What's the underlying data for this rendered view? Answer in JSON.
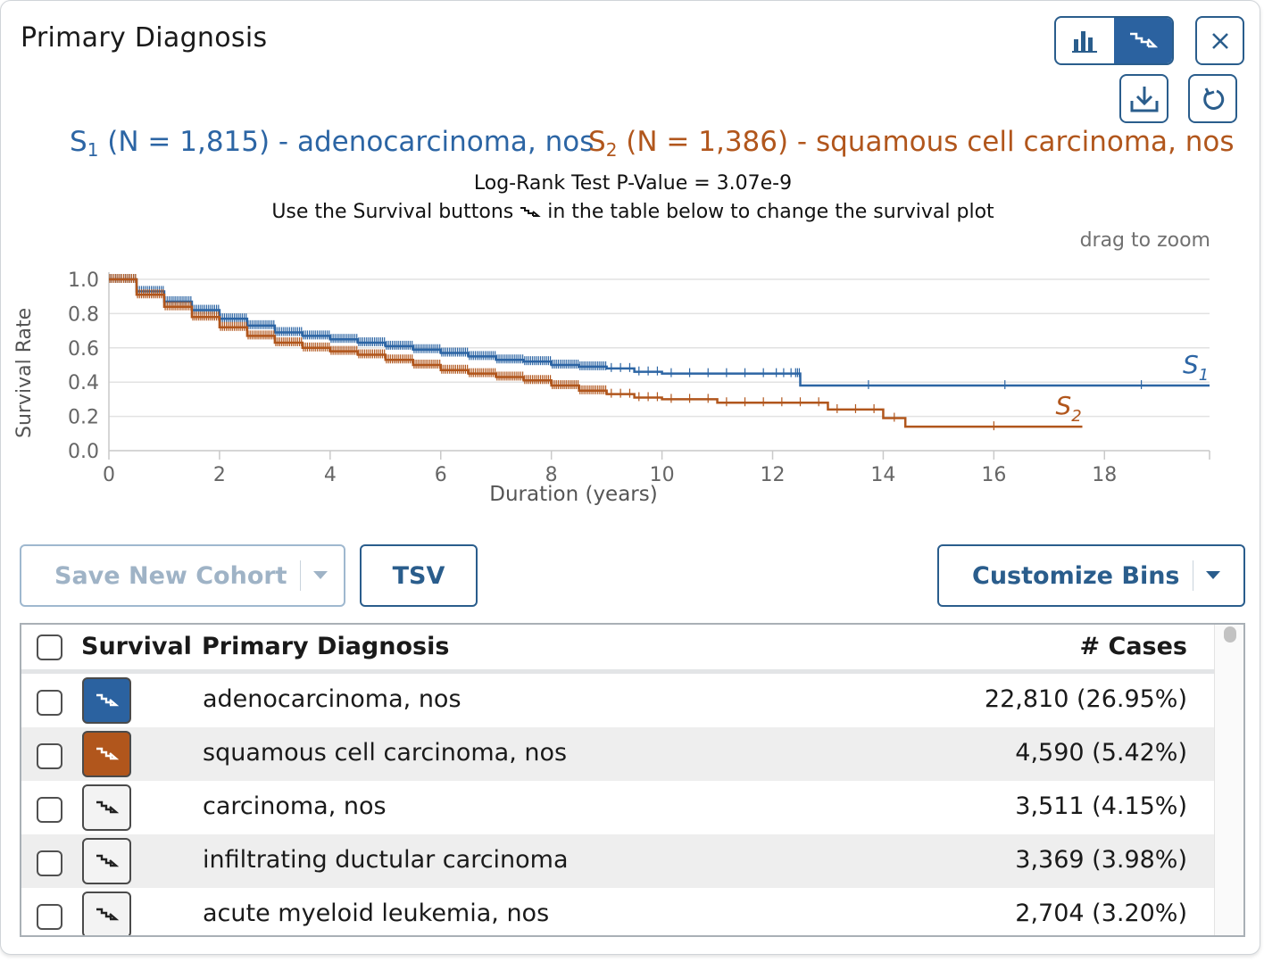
{
  "panel": {
    "title": "Primary Diagnosis"
  },
  "toolbar": {
    "bar_chart_icon": "bar-chart-icon",
    "survival_icon": "survival-plot-icon",
    "close_icon": "close-icon",
    "download_icon": "download-icon",
    "reset_icon": "reset-icon"
  },
  "legend": {
    "s1": {
      "sym": "S",
      "sub": "1",
      "text": " (N = 1,815) - adenocarcinoma, nos"
    },
    "s2": {
      "sym": "S",
      "sub": "2",
      "text": " (N = 1,386) - squamous cell carcinoma, nos"
    },
    "pvalue": "Log-Rank Test P-Value = 3.07e-9",
    "hint_before": "Use the Survival buttons",
    "hint_after": "in the table below to change the survival plot",
    "drag": "drag to zoom"
  },
  "chart_data": {
    "type": "line",
    "xlabel": "Duration (years)",
    "ylabel": "Survival Rate",
    "xlim": [
      0,
      19.9
    ],
    "ylim": [
      0,
      1
    ],
    "x_ticks": [
      "0",
      "2",
      "4",
      "6",
      "8",
      "10",
      "12",
      "14",
      "16",
      "18"
    ],
    "y_ticks": [
      "0.0",
      "0.2",
      "0.4",
      "0.6",
      "0.8",
      "1.0"
    ],
    "grid": true,
    "series": [
      {
        "name": "S1",
        "color": "#2c65a4",
        "label_sub": "1",
        "x": [
          0,
          0.5,
          1,
          1.5,
          2,
          2.5,
          3,
          3.5,
          4,
          4.5,
          5,
          5.5,
          6,
          6.5,
          7,
          7.5,
          8,
          8.5,
          9,
          9.5,
          10,
          11,
          12,
          12.4,
          12.5,
          19.9
        ],
        "y": [
          1.0,
          0.93,
          0.87,
          0.82,
          0.77,
          0.73,
          0.69,
          0.67,
          0.65,
          0.63,
          0.61,
          0.59,
          0.57,
          0.55,
          0.53,
          0.52,
          0.5,
          0.49,
          0.48,
          0.46,
          0.45,
          0.45,
          0.45,
          0.45,
          0.38,
          0.38
        ]
      },
      {
        "name": "S2",
        "color": "#b1561c",
        "label_sub": "2",
        "x": [
          0,
          0.5,
          1,
          1.5,
          2,
          2.5,
          3,
          3.5,
          4,
          4.5,
          5,
          5.5,
          6,
          6.5,
          7,
          7.5,
          8,
          8.5,
          9,
          9.5,
          10,
          11,
          12,
          13,
          14,
          14.4,
          17.6
        ],
        "y": [
          1.0,
          0.91,
          0.84,
          0.78,
          0.72,
          0.67,
          0.63,
          0.6,
          0.58,
          0.56,
          0.53,
          0.5,
          0.47,
          0.45,
          0.43,
          0.41,
          0.38,
          0.35,
          0.33,
          0.31,
          0.3,
          0.28,
          0.28,
          0.24,
          0.19,
          0.14,
          0.14
        ]
      }
    ]
  },
  "actions": {
    "save_label": "Save New Cohort",
    "tsv_label": "TSV",
    "bins_label": "Customize Bins"
  },
  "table": {
    "headers": {
      "survival": "Survival",
      "diagnosis": "Primary Diagnosis",
      "cases": "# Cases"
    },
    "rows": [
      {
        "diagnosis": "adenocarcinoma, nos",
        "cases": "22,810 (26.95%)",
        "survival_color": "#2b62a0"
      },
      {
        "diagnosis": "squamous cell carcinoma, nos",
        "cases": "4,590 (5.42%)",
        "survival_color": "#b1561c"
      },
      {
        "diagnosis": "carcinoma, nos",
        "cases": "3,511 (4.15%)",
        "survival_color": ""
      },
      {
        "diagnosis": "infiltrating ductular carcinoma",
        "cases": "3,369 (3.98%)",
        "survival_color": ""
      },
      {
        "diagnosis": "acute myeloid leukemia, nos",
        "cases": "2,704 (3.20%)",
        "survival_color": ""
      }
    ]
  }
}
